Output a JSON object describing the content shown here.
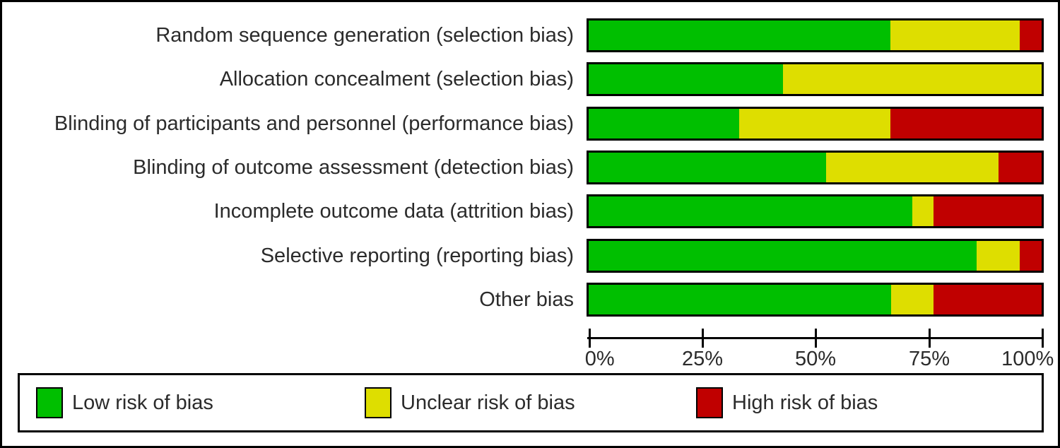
{
  "chart_data": {
    "type": "bar",
    "orientation": "horizontal-stacked",
    "title": "",
    "xlabel": "",
    "ylabel": "",
    "xlim": [
      0,
      100
    ],
    "x_ticks": [
      "0%",
      "25%",
      "50%",
      "75%",
      "100%"
    ],
    "grid": false,
    "legend_position": "bottom",
    "categories": [
      "Random sequence generation (selection bias)",
      "Allocation concealment (selection bias)",
      "Blinding of participants and personnel (performance bias)",
      "Blinding of outcome assessment (detection bias)",
      "Incomplete outcome data (attrition bias)",
      "Selective reporting (reporting bias)",
      "Other bias"
    ],
    "series": [
      {
        "name": "Low risk of bias",
        "color": "#00bf00",
        "values": [
          66.7,
          42.9,
          33.3,
          52.4,
          71.4,
          85.7,
          66.7
        ]
      },
      {
        "name": "Unclear risk of bias",
        "color": "#dede00",
        "values": [
          28.6,
          57.1,
          33.3,
          38.1,
          4.8,
          9.5,
          9.5
        ]
      },
      {
        "name": "High risk of bias",
        "color": "#c00000",
        "values": [
          4.8,
          0,
          33.4,
          9.5,
          23.8,
          4.8,
          23.8
        ]
      }
    ]
  },
  "legend": {
    "items": [
      {
        "label": "Low risk of bias",
        "color": "#00bf00"
      },
      {
        "label": "Unclear risk of bias",
        "color": "#dede00"
      },
      {
        "label": "High risk of bias",
        "color": "#c00000"
      }
    ]
  },
  "colors": {
    "low": "#00bf00",
    "unclear": "#dede00",
    "high": "#c00000",
    "axis": "#000000",
    "border": "#000000",
    "background": "#ffffff"
  }
}
